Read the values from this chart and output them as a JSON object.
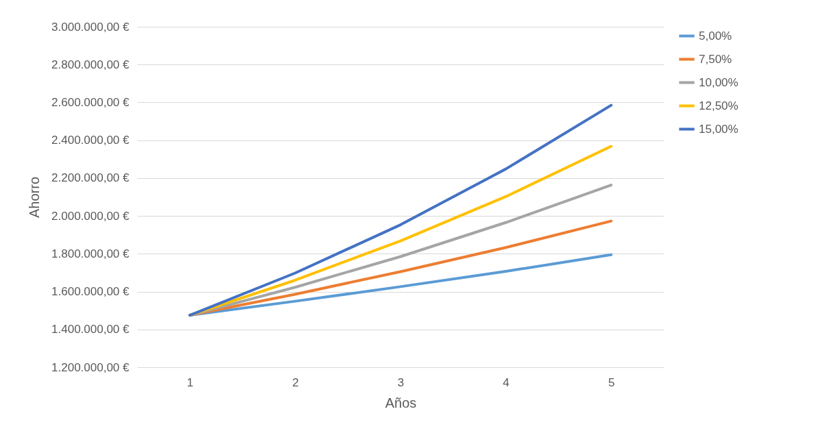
{
  "chart_data": {
    "type": "line",
    "xlabel": "Años",
    "ylabel": "Ahorro",
    "categories": [
      "1",
      "2",
      "3",
      "4",
      "5"
    ],
    "series": [
      {
        "name": "5,00%",
        "color": "#5b9bd5",
        "values": [
          1475000,
          1549000,
          1626000,
          1707000,
          1795000
        ]
      },
      {
        "name": "7,50%",
        "color": "#ed7d31",
        "values": [
          1475000,
          1586000,
          1705000,
          1833000,
          1973000
        ]
      },
      {
        "name": "10,00%",
        "color": "#a5a5a5",
        "values": [
          1475000,
          1623000,
          1785000,
          1965000,
          2163000
        ]
      },
      {
        "name": "12,50%",
        "color": "#ffc000",
        "values": [
          1475000,
          1660000,
          1868000,
          2102000,
          2368000
        ]
      },
      {
        "name": "15,00%",
        "color": "#4472c4",
        "values": [
          1475000,
          1698000,
          1953000,
          2248000,
          2585000
        ]
      }
    ],
    "ylim": [
      1200000,
      3000000
    ],
    "yticks": [
      {
        "value": 1200000,
        "label": "1.200.000,00 €"
      },
      {
        "value": 1400000,
        "label": "1.400.000,00 €"
      },
      {
        "value": 1600000,
        "label": "1.600.000,00 €"
      },
      {
        "value": 1800000,
        "label": "1.800.000,00 €"
      },
      {
        "value": 2000000,
        "label": "2.000.000,00 €"
      },
      {
        "value": 2200000,
        "label": "2.200.000,00 €"
      },
      {
        "value": 2400000,
        "label": "2.400.000,00 €"
      },
      {
        "value": 2600000,
        "label": "2.600.000,00 €"
      },
      {
        "value": 2800000,
        "label": "2.800.000,00 €"
      },
      {
        "value": 3000000,
        "label": "3.000.000,00 €"
      }
    ],
    "grid": "y",
    "legend": "right",
    "line_style": "solid"
  }
}
